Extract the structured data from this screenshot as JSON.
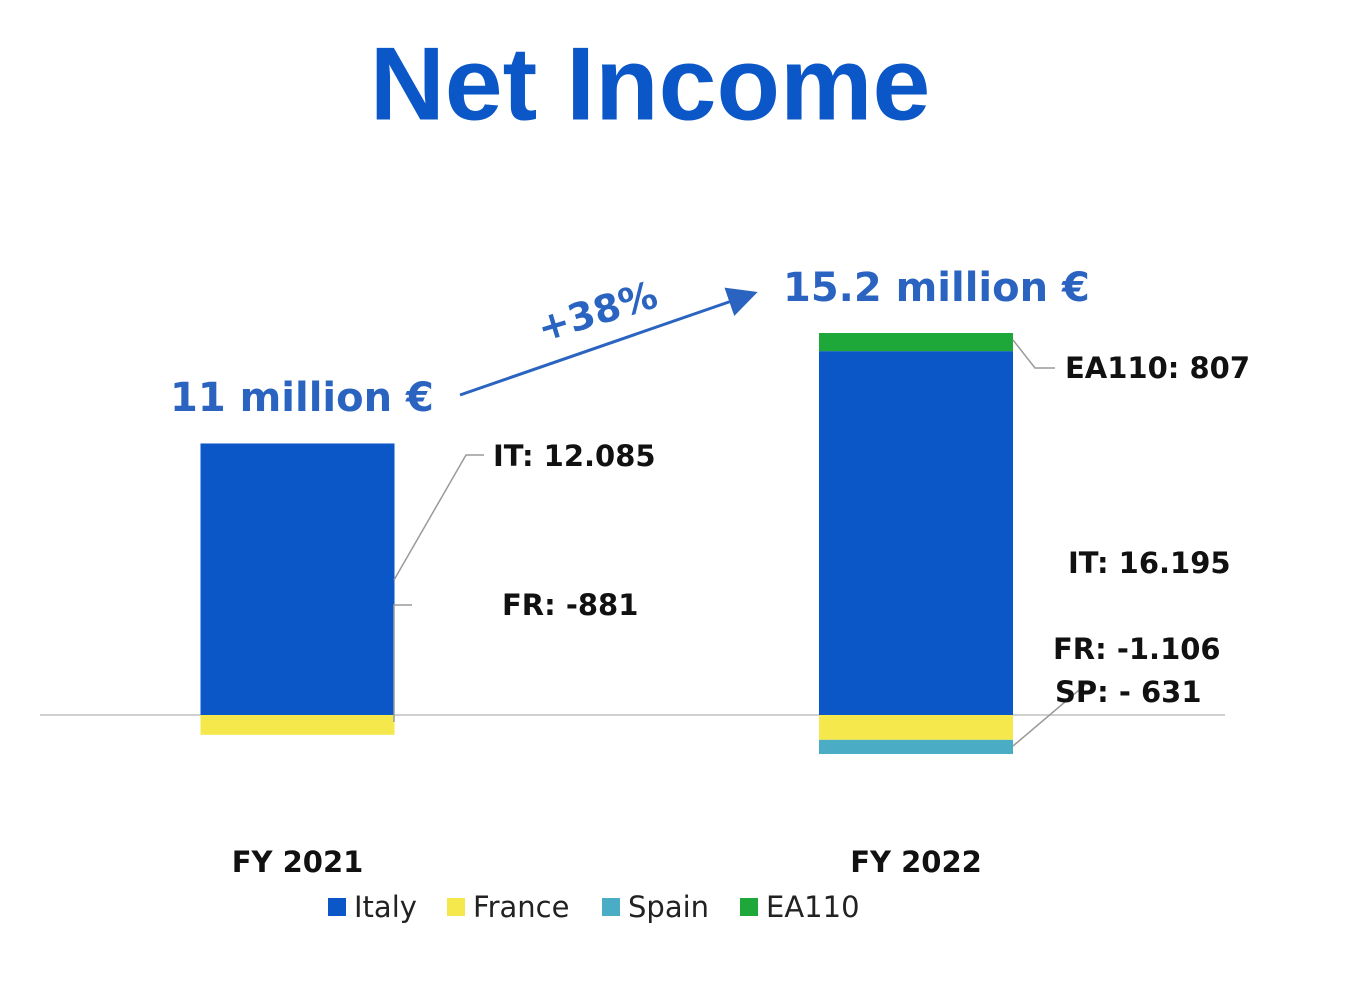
{
  "chart_data": {
    "type": "bar",
    "stacked": true,
    "title": "Net Income",
    "categories": [
      "FY 2021",
      "FY 2022"
    ],
    "series": [
      {
        "name": "Italy",
        "color": "#0b57c7",
        "values": [
          12085,
          16195
        ],
        "value_labels": [
          "IT: 12.085",
          "IT: 16.195"
        ]
      },
      {
        "name": "France",
        "color": "#f5e84c",
        "values": [
          -881,
          -1106
        ],
        "value_labels": [
          "FR: -881",
          "FR: -1.106"
        ]
      },
      {
        "name": "Spain",
        "color": "#4bacc6",
        "values": [
          null,
          -631
        ],
        "value_labels": [
          null,
          "SP: - 631"
        ]
      },
      {
        "name": "EA110",
        "color": "#1fa83a",
        "values": [
          null,
          807
        ],
        "value_labels": [
          null,
          "EA110: 807"
        ]
      }
    ],
    "annotations": [
      "11 million €",
      "15.2 million €",
      "+38%"
    ]
  }
}
